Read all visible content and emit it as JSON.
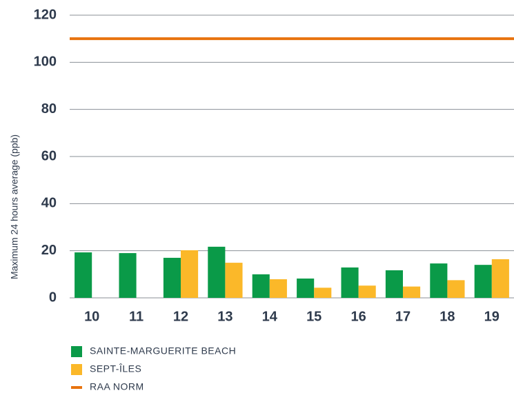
{
  "chart_data": {
    "type": "bar",
    "y_label": "Maximum 24 hours average (ppb)",
    "categories": [
      "10",
      "11",
      "12",
      "13",
      "14",
      "15",
      "16",
      "17",
      "18",
      "19"
    ],
    "series": [
      {
        "name": "SAINTE-MARGUERITE BEACH",
        "color": "#0a9a48",
        "values": [
          19.3,
          19,
          17,
          21.7,
          10,
          8.2,
          12.9,
          11.7,
          14.6,
          14
        ]
      },
      {
        "name": "SEPT-ÎLES",
        "color": "#fbb829",
        "values": [
          null,
          null,
          20.2,
          14.9,
          7.9,
          4.3,
          5.2,
          4.8,
          7.5,
          16.4
        ]
      },
      {
        "name": "RAA NORM",
        "color": "#e8730e",
        "type": "hline",
        "value": 110
      }
    ],
    "ylim": [
      0,
      120
    ],
    "yticks": [
      0,
      20,
      40,
      60,
      80,
      100,
      120
    ],
    "grid": true,
    "legend": "bottom-left"
  }
}
